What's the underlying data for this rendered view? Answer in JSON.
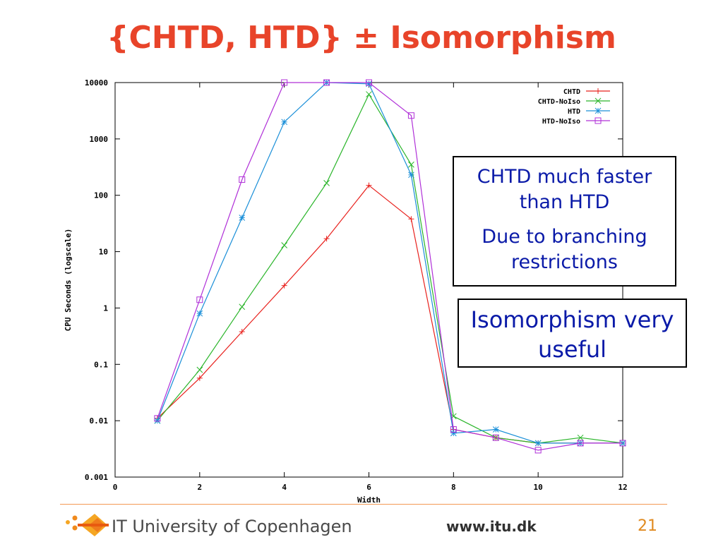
{
  "title": "{CHTD, HTD} ± Isomorphism",
  "callouts": {
    "first_line1": "CHTD much faster than HTD",
    "first_line2": "Due to branching restrictions",
    "second": "Isomorphism very useful"
  },
  "footer": {
    "institution": "IT University of Copenhagen",
    "url": "www.itu.dk",
    "page_number": "21"
  },
  "chart_data": {
    "type": "line",
    "title": "",
    "xlabel": "Width",
    "ylabel": "CPU Seconds (logscale)",
    "xlim": [
      0,
      12
    ],
    "ylim": [
      0.001,
      10000
    ],
    "yscale": "log",
    "x_ticks": [
      0,
      2,
      4,
      6,
      8,
      10,
      12
    ],
    "y_ticks": [
      0.001,
      0.01,
      0.1,
      1,
      10,
      100,
      1000,
      10000
    ],
    "y_tick_labels": [
      "0.001",
      "0.01",
      "0.1",
      "1",
      "10",
      "100",
      "1000",
      "10000"
    ],
    "legend_position": "top-right",
    "grid": false,
    "series": [
      {
        "name": "CHTD",
        "color": "#e8201c",
        "marker": "plus",
        "x": [
          1,
          2,
          3,
          4,
          5,
          6,
          7,
          8,
          9,
          10,
          11,
          12
        ],
        "y": [
          0.011,
          0.057,
          0.38,
          2.5,
          17,
          150,
          38,
          0.007,
          0.005,
          0.004,
          0.004,
          0.004
        ]
      },
      {
        "name": "CHTD-NoIso",
        "color": "#2ab52a",
        "marker": "cross",
        "x": [
          1,
          2,
          3,
          4,
          5,
          6,
          7,
          8,
          9,
          10,
          11,
          12
        ],
        "y": [
          0.01,
          0.08,
          1.05,
          13,
          165,
          6200,
          350,
          0.012,
          0.005,
          0.004,
          0.005,
          0.004
        ]
      },
      {
        "name": "HTD",
        "color": "#1a8fd8",
        "marker": "star",
        "x": [
          1,
          2,
          3,
          4,
          5,
          6,
          7,
          8,
          9,
          10,
          11,
          12
        ],
        "y": [
          0.01,
          0.8,
          40,
          2000,
          10000,
          9500,
          230,
          0.006,
          0.007,
          0.004,
          0.004,
          0.004
        ]
      },
      {
        "name": "HTD-NoIso",
        "color": "#b030d8",
        "marker": "square",
        "x": [
          1,
          2,
          3,
          4,
          5,
          6,
          7,
          8,
          9,
          10,
          11,
          12
        ],
        "y": [
          0.011,
          1.4,
          190,
          10000,
          10000,
          10000,
          2600,
          0.007,
          0.005,
          0.003,
          0.004,
          0.004
        ]
      }
    ]
  }
}
